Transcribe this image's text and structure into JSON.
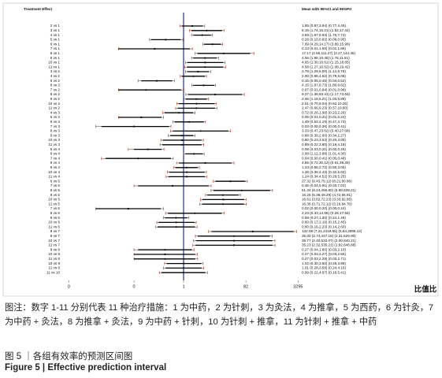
{
  "chart_data": {
    "type": "forest",
    "header_left": "Treatment Effect",
    "header_right": "Mean with 95%CI and 95%PrI",
    "xlabel": "比值比",
    "x_log": true,
    "xlim": [
      7e-06,
      6300
    ],
    "xticks": [
      {
        "value": 0.0003,
        "label": "0"
      },
      {
        "value": 0.03,
        "label": "0"
      },
      1,
      82,
      3295
    ],
    "null_line": 1,
    "ci_color": "#000000",
    "pri_color": "#c0392b",
    "null_color": "#1f2f9a",
    "rows": [
      {
        "label": "2 vs 1",
        "text": "1.85 (0.87,3.94) (0.77,4.45)",
        "mean": 1.85,
        "ci": [
          0.87,
          3.94
        ],
        "pri": [
          0.77,
          4.45
        ]
      },
      {
        "label": "3 vs 1",
        "text": "5.15 (1.74,15.21) (1.52,17.42)",
        "mean": 5.15,
        "ci": [
          1.74,
          15.21
        ],
        "pri": [
          1.52,
          17.42
        ]
      },
      {
        "label": "4 vs 1",
        "text": "3.69 (1.97,6.93) (1.76,7.74)",
        "mean": 3.69,
        "ci": [
          1.97,
          6.93
        ],
        "pri": [
          1.76,
          7.74
        ]
      },
      {
        "label": "5 vs 1",
        "text": "0.28 (0.10,0.82) (0.09,0.95)",
        "mean": 0.28,
        "ci": [
          0.1,
          0.82
        ],
        "pri": [
          0.09,
          0.95
        ]
      },
      {
        "label": "6 vs 1",
        "text": "7.69 (4.29,14.17) (3.89,15.96)",
        "mean": 7.69,
        "ci": [
          4.29,
          14.17
        ],
        "pri": [
          3.89,
          15.96
        ]
      },
      {
        "label": "7 vs 1",
        "text": "0.13 (0.01,1.56) (0.01,1.86)",
        "mean": 0.13,
        "ci": [
          0.01,
          1.56
        ],
        "pri": [
          0.01,
          1.86
        ]
      },
      {
        "label": "8 vs 1",
        "text": "17.17 (2.65,111.27) (2.27,144.45)",
        "mean": 17.17,
        "ci": [
          2.65,
          111.27
        ],
        "pri": [
          2.27,
          144.45
        ]
      },
      {
        "label": "9 vs 1",
        "text": "4.55 (1.98,10.45) (1.76,11.81)",
        "mean": 4.55,
        "ci": [
          1.98,
          10.45
        ],
        "pri": [
          1.76,
          11.81
        ]
      },
      {
        "label": "10 vs 1",
        "text": "4.65 (1.30,16.61) (1.15,18.85)",
        "mean": 4.65,
        "ci": [
          1.3,
          16.61
        ],
        "pri": [
          1.15,
          18.85
        ]
      },
      {
        "label": "11 vs 1",
        "text": "4.58 (1.27,16.52) (1.08,19.42)",
        "mean": 4.58,
        "ci": [
          1.27,
          16.52
        ],
        "pri": [
          1.08,
          19.42
        ]
      },
      {
        "label": "3 vs 2",
        "text": "2.78 (1.29,6.00) (1.14,6.78)",
        "mean": 2.78,
        "ci": [
          1.29,
          6.0
        ],
        "pri": [
          1.14,
          6.78
        ]
      },
      {
        "label": "4 vs 2",
        "text": "2.00 (0.88,4.52) (0.79,5.08)",
        "mean": 2.0,
        "ci": [
          0.88,
          4.52
        ],
        "pri": [
          0.79,
          5.08
        ]
      },
      {
        "label": "5 vs 2",
        "text": "0.15 (0.05,0.45) (0.04,0.52)",
        "mean": 0.15,
        "ci": [
          0.05,
          0.45
        ],
        "pri": [
          0.04,
          0.52
        ]
      },
      {
        "label": "6 vs 2",
        "text": "4.15 (1.97,8.73) (1.80,9.62)",
        "mean": 4.15,
        "ci": [
          1.97,
          8.73
        ],
        "pri": [
          1.8,
          9.62
        ]
      },
      {
        "label": "7 vs 2",
        "text": "0.07 (0.01,0.84) (0.01,0.98)",
        "mean": 0.07,
        "ci": [
          0.01,
          0.84
        ],
        "pri": [
          0.01,
          0.98
        ]
      },
      {
        "label": "8 vs 2",
        "text": "9.27 (1.36,63.41) (1.17,73.56)",
        "mean": 9.27,
        "ci": [
          1.36,
          63.41
        ],
        "pri": [
          1.17,
          73.56
        ]
      },
      {
        "label": "9 vs 2",
        "text": "2.46 (1.16,5.21) (1.03,5.88)",
        "mean": 2.46,
        "ci": [
          1.16,
          5.21
        ],
        "pri": [
          1.03,
          5.88
        ]
      },
      {
        "label": "10 vs 2",
        "text": "2.51 (0.70,9.04) (0.62,10.25)",
        "mean": 2.51,
        "ci": [
          0.7,
          9.04
        ],
        "pri": [
          0.62,
          10.25
        ]
      },
      {
        "label": "11 vs 2",
        "text": "2.47 (0.66,9.23) (0.57,10.60)",
        "mean": 2.47,
        "ci": [
          0.66,
          9.23
        ],
        "pri": [
          0.57,
          10.6
        ]
      },
      {
        "label": "4 vs 3",
        "text": "0.72 (0.26,1.98) (0.23,2.26)",
        "mean": 0.72,
        "ci": [
          0.26,
          1.98
        ],
        "pri": [
          0.23,
          2.26
        ]
      },
      {
        "label": "5 vs 3",
        "text": "0.05 (0.01,0.21) (0.01,0.24)",
        "mean": 0.05,
        "ci": [
          0.01,
          0.21
        ],
        "pri": [
          0.01,
          0.24
        ]
      },
      {
        "label": "6 vs 3",
        "text": "1.49 (0.53,4.19) (0.47,4.73)",
        "mean": 1.49,
        "ci": [
          0.53,
          4.19
        ],
        "pri": [
          0.47,
          4.73
        ]
      },
      {
        "label": "7 vs 3",
        "text": "0.03 (0.00,0.36) (0.00,0.41)",
        "mean": 0.03,
        "ci": [
          0.003,
          0.36
        ],
        "pri": [
          0.002,
          0.41
        ]
      },
      {
        "label": "8 vs 3",
        "text": "3.33 (0.47,23.62) (0.40,27.68)",
        "mean": 3.33,
        "ci": [
          0.47,
          23.62
        ],
        "pri": [
          0.4,
          27.68
        ]
      },
      {
        "label": "9 vs 3",
        "text": "0.88 (0.39,2.00) (0.34,2.27)",
        "mean": 0.88,
        "ci": [
          0.39,
          2.0
        ],
        "pri": [
          0.34,
          2.27
        ]
      },
      {
        "label": "10 vs 3",
        "text": "0.90 (0.23,3.53) (0.20,4.05)",
        "mean": 0.9,
        "ci": [
          0.23,
          3.53
        ],
        "pri": [
          0.2,
          4.05
        ]
      },
      {
        "label": "11 vs 3",
        "text": "0.89 (0.22,3.60) (0.19,4.18)",
        "mean": 0.89,
        "ci": [
          0.22,
          3.6
        ],
        "pri": [
          0.19,
          4.18
        ]
      },
      {
        "label": "5 vs 4",
        "text": "0.08 (0.03,0.21) (0.02,0.25)",
        "mean": 0.08,
        "ci": [
          0.03,
          0.21
        ],
        "pri": [
          0.02,
          0.25
        ]
      },
      {
        "label": "6 vs 4",
        "text": "2.08 (1.12,3.88) (1.01,4.30)",
        "mean": 2.08,
        "ci": [
          1.12,
          3.88
        ],
        "pri": [
          1.01,
          4.3
        ]
      },
      {
        "label": "7 vs 4",
        "text": "0.04 (0.00,0.41) (0.00,0.48)",
        "mean": 0.04,
        "ci": [
          0.004,
          0.41
        ],
        "pri": [
          0.003,
          0.48
        ]
      },
      {
        "label": "8 vs 4",
        "text": "4.65 (0.72,30.12) (0.61,35.38)",
        "mean": 4.65,
        "ci": [
          0.72,
          30.12
        ],
        "pri": [
          0.61,
          35.38
        ]
      },
      {
        "label": "9 vs 4",
        "text": "1.23 (0.56,2.72) (0.50,3.05)",
        "mean": 1.23,
        "ci": [
          0.56,
          2.72
        ],
        "pri": [
          0.5,
          3.05
        ]
      },
      {
        "label": "10 vs 4",
        "text": "1.26 (0.36,4.43) (0.32,5.02)",
        "mean": 1.26,
        "ci": [
          0.36,
          4.43
        ],
        "pri": [
          0.32,
          5.02
        ]
      },
      {
        "label": "11 vs 4",
        "text": "1.24 (0.34,4.52) (0.29,5.25)",
        "mean": 1.24,
        "ci": [
          0.34,
          4.52
        ],
        "pri": [
          0.29,
          5.25
        ]
      },
      {
        "label": "6 vs 5",
        "text": "27.32 (9.43,79.12) (8.21,90.86)",
        "mean": 27.32,
        "ci": [
          9.43,
          79.12
        ],
        "pri": [
          8.21,
          90.86
        ]
      },
      {
        "label": "7 vs 5",
        "text": "0.46 (0.04,5.91) (0.03,7.02)",
        "mean": 0.46,
        "ci": [
          0.04,
          5.91
        ],
        "pri": [
          0.03,
          7.02
        ]
      },
      {
        "label": "8 vs 5",
        "text": "61.34 (8.24,456.80) (6.98,539.21)",
        "mean": 61.34,
        "ci": [
          8.24,
          456.8
        ],
        "pri": [
          6.98,
          539.21
        ]
      },
      {
        "label": "9 vs 5",
        "text": "16.25 (5.36,49.29) (4.72,55.91)",
        "mean": 16.25,
        "ci": [
          5.36,
          49.29
        ],
        "pri": [
          4.72,
          55.91
        ]
      },
      {
        "label": "10 vs 5",
        "text": "16.61 (3.82,72.23) (3.33,82.85)",
        "mean": 16.61,
        "ci": [
          3.82,
          72.23
        ],
        "pri": [
          3.33,
          82.85
        ]
      },
      {
        "label": "11 vs 5",
        "text": "16.36 (3.71,72.12) (3.16,84.70)",
        "mean": 16.36,
        "ci": [
          3.71,
          72.12
        ],
        "pri": [
          3.16,
          84.7
        ]
      },
      {
        "label": "7 vs 6",
        "text": "0.02 (0.00,0.20) (0.00,0.24)",
        "mean": 0.02,
        "ci": [
          0.002,
          0.2
        ],
        "pri": [
          0.002,
          0.24
        ]
      },
      {
        "label": "8 vs 6",
        "text": "2.23 (0.33,14.95) (0.28,17.56)",
        "mean": 2.23,
        "ci": [
          0.33,
          14.95
        ],
        "pri": [
          0.28,
          17.56
        ]
      },
      {
        "label": "9 vs 6",
        "text": "0.59 (0.27,1.30) (0.24,1.46)",
        "mean": 0.59,
        "ci": [
          0.27,
          1.3
        ],
        "pri": [
          0.24,
          1.46
        ]
      },
      {
        "label": "10 vs 6",
        "text": "0.60 (0.17,2.16) (0.15,2.45)",
        "mean": 0.6,
        "ci": [
          0.17,
          2.16
        ],
        "pri": [
          0.15,
          2.45
        ]
      },
      {
        "label": "11 vs 6",
        "text": "0.60 (0.16,2.23) (0.14,2.60)",
        "mean": 0.6,
        "ci": [
          0.16,
          2.23
        ],
        "pri": [
          0.14,
          2.6
        ]
      },
      {
        "label": "8 vs 7",
        "text": "132.08 (7.21,2419.55) (5.84,2986.12)",
        "mean": 132.08,
        "ci": [
          7.21,
          2419.55
        ],
        "pri": [
          5.84,
          2986.12
        ]
      },
      {
        "label": "9 vs 7",
        "text": "35.00 (2.74,447.16) (2.31,529.90)",
        "mean": 35.0,
        "ci": [
          2.74,
          447.16
        ],
        "pri": [
          2.31,
          529.9
        ]
      },
      {
        "label": "10 vs 7",
        "text": "35.77 (2.40,533.07) (2.00,640.21)",
        "mean": 35.77,
        "ci": [
          2.4,
          533.07
        ],
        "pri": [
          2.0,
          640.21
        ]
      },
      {
        "label": "11 vs 7",
        "text": "35.23 (2.32,535.21) (1.92,646.88)",
        "mean": 35.23,
        "ci": [
          2.32,
          535.21
        ],
        "pri": [
          1.92,
          646.88
        ]
      },
      {
        "label": "9 vs 8",
        "text": "0.27 (0.04,1.80) (0.03,2.10)",
        "mean": 0.27,
        "ci": [
          0.04,
          1.8
        ],
        "pri": [
          0.03,
          2.1
        ]
      },
      {
        "label": "10 vs 8",
        "text": "0.27 (0.03,2.27) (0.03,2.65)",
        "mean": 0.27,
        "ci": [
          0.03,
          2.27
        ],
        "pri": [
          0.03,
          2.65
        ]
      },
      {
        "label": "11 vs 8",
        "text": "0.27 (0.03,2.29) (0.03,2.71)",
        "mean": 0.27,
        "ci": [
          0.03,
          2.29
        ],
        "pri": [
          0.03,
          2.71
        ]
      },
      {
        "label": "10 vs 9",
        "text": "1.02 (0.30,3.50) (0.26,3.98)",
        "mean": 1.02,
        "ci": [
          0.3,
          3.5
        ],
        "pri": [
          0.26,
          3.98
        ]
      },
      {
        "label": "11 vs 9",
        "text": "1.01 (0.28,3.58) (0.24,4.16)",
        "mean": 1.01,
        "ci": [
          0.28,
          3.58
        ],
        "pri": [
          0.24,
          4.16
        ]
      },
      {
        "label": "11 vs 10",
        "text": "0.99 (0.21,4.67) (0.18,5.41)",
        "mean": 0.99,
        "ci": [
          0.21,
          4.67
        ],
        "pri": [
          0.18,
          5.41
        ]
      }
    ]
  },
  "caption": "图注：数字 1-11 分别代表 11 种治疗措施：1 为中药，2 为针刺，3 为灸法，4 为推拿，5 为西药，6 为针灸，7 为中药 + 灸法，8 为推拿 + 灸法，9 为中药 + 针刺，10 为针刺 + 推拿，11 为针刺 + 推拿 + 中药",
  "figure_title_cn": "图 5 ｜各组有效率的预测区间图",
  "figure_title_en": "Figure 5 | Effective prediction interval"
}
